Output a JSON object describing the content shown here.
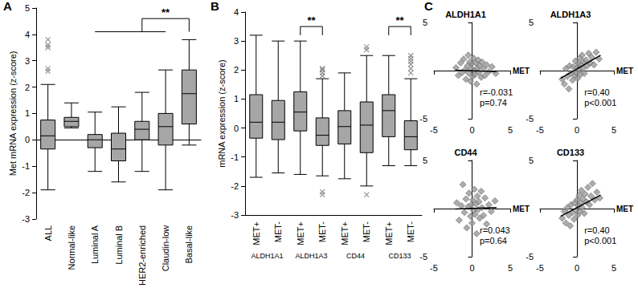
{
  "chart_data": [
    {
      "type": "boxplot",
      "panel": "A",
      "ylabel": "Met mRNA expression (z-score)",
      "categories": [
        "ALL",
        "Normal-like",
        "Luminal A",
        "Luminal B",
        "HER2-enriched",
        "Claudin-low",
        "Basal-like"
      ],
      "values": [
        [
          -1.9,
          -0.35,
          0.15,
          0.75,
          2.1
        ],
        [
          0.45,
          0.5,
          0.7,
          0.85,
          1.4
        ],
        [
          -1.2,
          -0.3,
          0,
          0.2,
          1.05
        ],
        [
          -1.6,
          -0.8,
          -0.35,
          0.25,
          1.25
        ],
        [
          -1.2,
          0,
          0.4,
          0.7,
          1.8
        ],
        [
          -1.9,
          -0.2,
          0.5,
          1.0,
          2.65
        ],
        [
          -0.2,
          0.6,
          1.75,
          2.65,
          3.8
        ]
      ],
      "outliers": [
        [
          2.6,
          2.7,
          3.5,
          3.6,
          3.8
        ],
        [],
        [],
        [],
        [],
        [],
        []
      ],
      "color": "#a6a6a6",
      "marker": "x",
      "ylim": [
        -3,
        5
      ],
      "yticks": [
        -3,
        -2,
        -1,
        0,
        1,
        2,
        3,
        4,
        5
      ],
      "grid": false,
      "annotations": [
        {
          "text": "**",
          "groups": [
            "Luminal A",
            "Claudin-low"
          ],
          "target": "Basal-like",
          "y": 4.1,
          "y_top": 4.6
        }
      ]
    },
    {
      "type": "boxplot",
      "panel": "B",
      "ylabel": "mRNA expression (z-score)",
      "categories": [
        "MET+",
        "MET-",
        "MET+",
        "MET-",
        "MET+",
        "MET-",
        "MET+",
        "MET-"
      ],
      "groups": [
        "ALDH1A1",
        "ALDH1A3",
        "CD44",
        "CD133"
      ],
      "values": [
        [
          -1.7,
          -0.35,
          0.2,
          1.15,
          3.2
        ],
        [
          -1.55,
          -0.4,
          0.2,
          0.95,
          3.0
        ],
        [
          -1.6,
          -0.1,
          0.55,
          1.25,
          3.0
        ],
        [
          -1.65,
          -0.6,
          -0.25,
          0.35,
          1.7
        ],
        [
          -1.75,
          -0.55,
          0.05,
          0.6,
          1.9
        ],
        [
          -2.0,
          -0.85,
          0.1,
          0.9,
          2.5
        ],
        [
          -1.3,
          -0.3,
          0.6,
          1.15,
          2.5
        ],
        [
          -1.3,
          -0.75,
          -0.3,
          0.25,
          1.7
        ]
      ],
      "outliers": [
        [],
        [],
        [],
        [
          1.8,
          1.9,
          2.0,
          2.05,
          -2.2,
          -2.3
        ],
        [],
        [
          2.7,
          2.8,
          -2.3
        ],
        [],
        [
          1.9,
          2.05,
          2.2,
          2.3,
          2.4,
          2.5
        ]
      ],
      "color": "#a6a6a6",
      "marker": "x",
      "ylim": [
        -3,
        4
      ],
      "yticks": [
        -3,
        -2,
        -1,
        0,
        1,
        2,
        3,
        4
      ],
      "grid": false,
      "annotations": [
        {
          "text": "**",
          "between": [
            2,
            3
          ],
          "y": 3.2,
          "y_top": 3.5
        },
        {
          "text": "**",
          "between": [
            6,
            7
          ],
          "y": 3.2,
          "y_top": 3.5
        }
      ]
    },
    {
      "type": "scatter",
      "panel": "C",
      "title": "ALDH1A1",
      "xlabel": "MET",
      "x": [
        -2.1,
        -1.8,
        -1.5,
        -1.3,
        -1.1,
        -0.9,
        -0.8,
        -0.6,
        -0.5,
        -0.4,
        -0.3,
        -0.2,
        -0.1,
        0,
        0.1,
        0.2,
        0.3,
        0.4,
        0.5,
        0.6,
        0.7,
        0.8,
        0.9,
        1.0,
        1.2,
        1.3,
        1.5,
        1.7,
        1.9,
        2.2,
        2.6,
        3.1
      ],
      "values": [
        0.3,
        -0.5,
        0.8,
        -0.2,
        1.2,
        0.1,
        -0.9,
        0.5,
        1.6,
        -0.3,
        0.9,
        -1.1,
        0.2,
        0.7,
        -0.6,
        1.3,
        0.0,
        -0.4,
        0.8,
        -1.4,
        0.3,
        1.1,
        -0.2,
        0.5,
        -0.7,
        0.9,
        0.2,
        -0.5,
        0.6,
        -0.1,
        0.4,
        -0.3
      ],
      "fit": {
        "x": [
          -2.2,
          3.2
        ],
        "values": [
          0.05,
          -0.1
        ]
      },
      "annotations": [
        "r=-0.031",
        "p=0.74"
      ],
      "color": "#999999",
      "marker": "diamond",
      "xlim": [
        -5,
        5
      ],
      "ylim": [
        -5,
        5
      ],
      "xticks": [
        -5,
        0,
        5
      ],
      "yticks": [
        -5,
        5
      ],
      "grid": false
    },
    {
      "type": "scatter",
      "title": "ALDH1A3",
      "xlabel": "MET",
      "x": [
        -2.0,
        -1.7,
        -1.5,
        -1.3,
        -1.1,
        -1.0,
        -0.8,
        -0.6,
        -0.5,
        -0.3,
        -0.2,
        -0.1,
        0,
        0.1,
        0.2,
        0.3,
        0.4,
        0.5,
        0.6,
        0.7,
        0.8,
        0.9,
        1.0,
        1.2,
        1.4,
        1.6,
        1.8,
        2.0,
        2.3,
        2.6,
        3.0
      ],
      "values": [
        -0.9,
        -1.4,
        0.2,
        -0.6,
        -1.9,
        0.5,
        -0.3,
        -1.0,
        0.4,
        -0.5,
        1.0,
        -0.2,
        0.3,
        -0.8,
        0.7,
        0.1,
        1.3,
        -0.4,
        0.6,
        1.6,
        0.2,
        0.9,
        -0.3,
        1.1,
        0.5,
        1.8,
        0.8,
        1.4,
        0.6,
        1.9,
        1.2
      ],
      "fit": {
        "x": [
          -2.2,
          3.2
        ],
        "values": [
          -0.8,
          1.6
        ]
      },
      "annotations": [
        "r=0.40",
        "p<0.001"
      ],
      "color": "#999999",
      "marker": "diamond",
      "xlim": [
        -5,
        5
      ],
      "ylim": [
        -5,
        5
      ],
      "xticks": [
        -5,
        0,
        5
      ],
      "yticks": [
        -5,
        5
      ],
      "grid": false
    },
    {
      "type": "scatter",
      "title": "CD44",
      "xlabel": "MET",
      "x": [
        -2.0,
        -1.7,
        -1.4,
        -1.2,
        -1.0,
        -0.8,
        -0.7,
        -0.5,
        -0.4,
        -0.2,
        -0.1,
        0,
        0.1,
        0.2,
        0.3,
        0.4,
        0.5,
        0.6,
        0.7,
        0.8,
        0.9,
        1.0,
        1.2,
        1.3,
        1.5,
        1.7,
        1.9,
        2.2,
        2.5,
        3.0
      ],
      "values": [
        0.6,
        -1.2,
        0.3,
        2.5,
        -0.4,
        1.0,
        -2.0,
        0.2,
        1.6,
        -0.8,
        0.4,
        -1.5,
        0.9,
        -0.2,
        2.0,
        -0.6,
        0.5,
        -2.6,
        1.3,
        -0.1,
        0.7,
        -1.0,
        1.8,
        0.1,
        -0.7,
        1.1,
        -1.6,
        0.4,
        -0.3,
        0.8
      ],
      "fit": {
        "x": [
          -2.2,
          3.2
        ],
        "values": [
          -0.05,
          0.1
        ]
      },
      "annotations": [
        "r=0.043",
        "p=0.64"
      ],
      "color": "#999999",
      "marker": "diamond",
      "xlim": [
        -5,
        5
      ],
      "ylim": [
        -5,
        5
      ],
      "xticks": [
        -5,
        0,
        5
      ],
      "yticks": [
        -5,
        5
      ],
      "grid": false
    },
    {
      "type": "scatter",
      "title": "CD133",
      "xlabel": "MET",
      "x": [
        -2.0,
        -1.7,
        -1.5,
        -1.3,
        -1.1,
        -0.9,
        -0.8,
        -0.6,
        -0.4,
        -0.3,
        -0.1,
        0,
        0.1,
        0.2,
        0.3,
        0.4,
        0.5,
        0.6,
        0.7,
        0.8,
        1.0,
        1.1,
        1.3,
        1.5,
        1.7,
        1.9,
        2.1,
        2.4,
        2.7,
        3.1
      ],
      "values": [
        -1.0,
        -0.3,
        -1.5,
        0.1,
        -0.7,
        -1.8,
        0.4,
        -0.4,
        -1.1,
        0.6,
        -0.2,
        0.9,
        -0.7,
        0.3,
        1.4,
        -0.3,
        0.6,
        1.9,
        0.1,
        1.0,
        -0.5,
        1.5,
        0.7,
        2.2,
        0.4,
        1.3,
        2.6,
        0.9,
        1.7,
        1.1
      ],
      "fit": {
        "x": [
          -2.2,
          3.2
        ],
        "values": [
          -0.8,
          1.4
        ]
      },
      "annotations": [
        "r=0.40",
        "p<0.001"
      ],
      "color": "#999999",
      "marker": "diamond",
      "xlim": [
        -5,
        5
      ],
      "ylim": [
        -5,
        5
      ],
      "xticks": [
        -5,
        0,
        5
      ],
      "yticks": [
        -5,
        5
      ],
      "grid": false
    }
  ]
}
